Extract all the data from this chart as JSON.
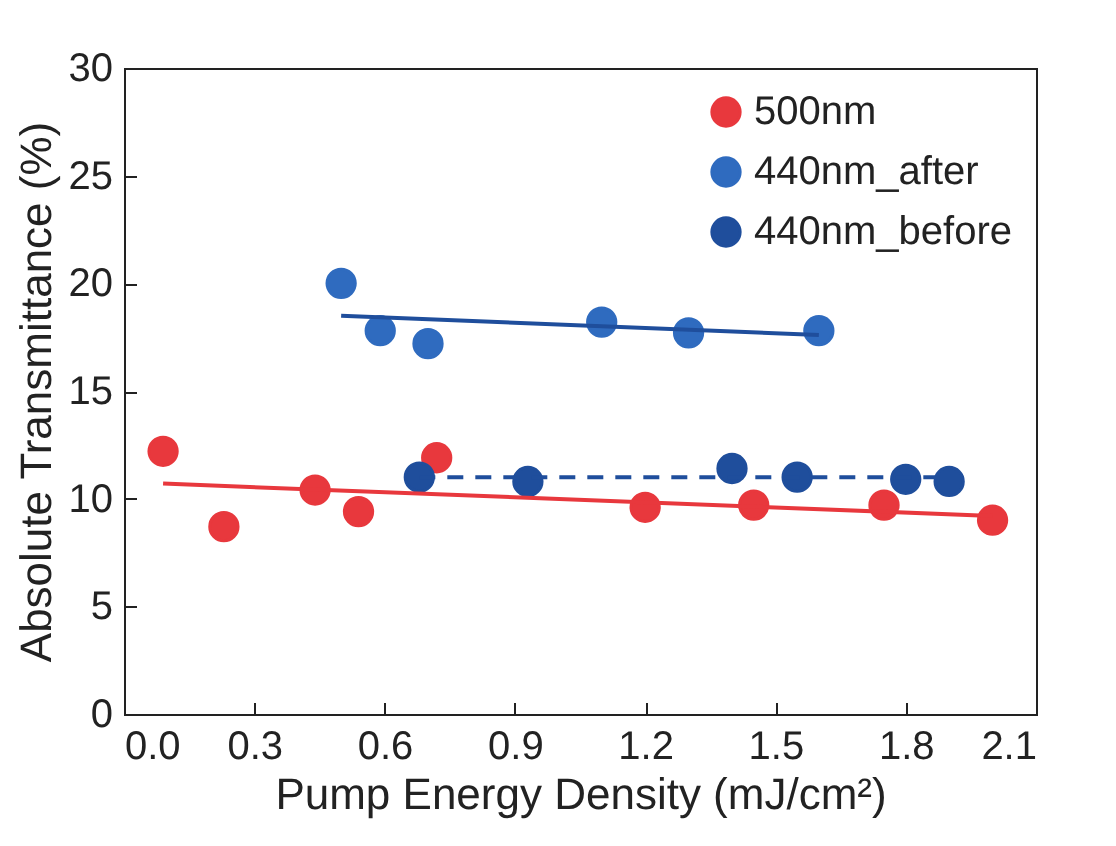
{
  "chart_data": {
    "type": "scatter",
    "xlabel": "Pump Energy Density (mJ/cm²)",
    "ylabel": "Absolute Transmittance (%)",
    "xlim": [
      0,
      2.1
    ],
    "ylim": [
      0,
      30
    ],
    "xticks": [
      {
        "value": 0,
        "label": "0.0"
      },
      0.3,
      0.6,
      0.9,
      1.2,
      1.5,
      1.8,
      2.1
    ],
    "yticks": [
      0,
      5,
      10,
      15,
      20,
      25,
      30
    ],
    "grid": false,
    "legend": "top right",
    "marker": "circle",
    "series": [
      {
        "name": "500nm",
        "color": "#e8383d",
        "x": [
          0.09,
          0.23,
          0.44,
          0.54,
          0.72,
          1.2,
          1.45,
          1.75,
          2.0
        ],
        "values": [
          12.2,
          8.7,
          10.4,
          9.4,
          11.9,
          9.6,
          9.7,
          9.7,
          9.0
        ]
      },
      {
        "name": "440nm_after",
        "color": "#2f6bbf",
        "x": [
          0.5,
          0.59,
          0.7,
          1.1,
          1.3,
          1.6
        ],
        "values": [
          20.0,
          17.8,
          17.2,
          18.2,
          17.7,
          17.8
        ]
      },
      {
        "name": "440nm_before",
        "color": "#1f4e9c",
        "x": [
          0.68,
          0.93,
          1.4,
          1.55,
          1.8,
          1.9
        ],
        "values": [
          11.0,
          10.8,
          11.4,
          11.0,
          10.9,
          10.8
        ]
      },
      {
        "type": "line",
        "marker": "none",
        "color": "#e8383d",
        "line_style": "solid",
        "x": [
          0.09,
          2.0
        ],
        "values": [
          10.7,
          9.2
        ]
      },
      {
        "type": "line",
        "marker": "none",
        "color": "#1f4e9c",
        "line_style": "solid",
        "x": [
          0.5,
          1.6
        ],
        "values": [
          18.5,
          17.6
        ]
      },
      {
        "type": "line",
        "marker": "none",
        "color": "#1f4e9c",
        "line_style": "dashed",
        "x": [
          0.68,
          1.9
        ],
        "values": [
          11.0,
          11.0
        ]
      }
    ]
  }
}
